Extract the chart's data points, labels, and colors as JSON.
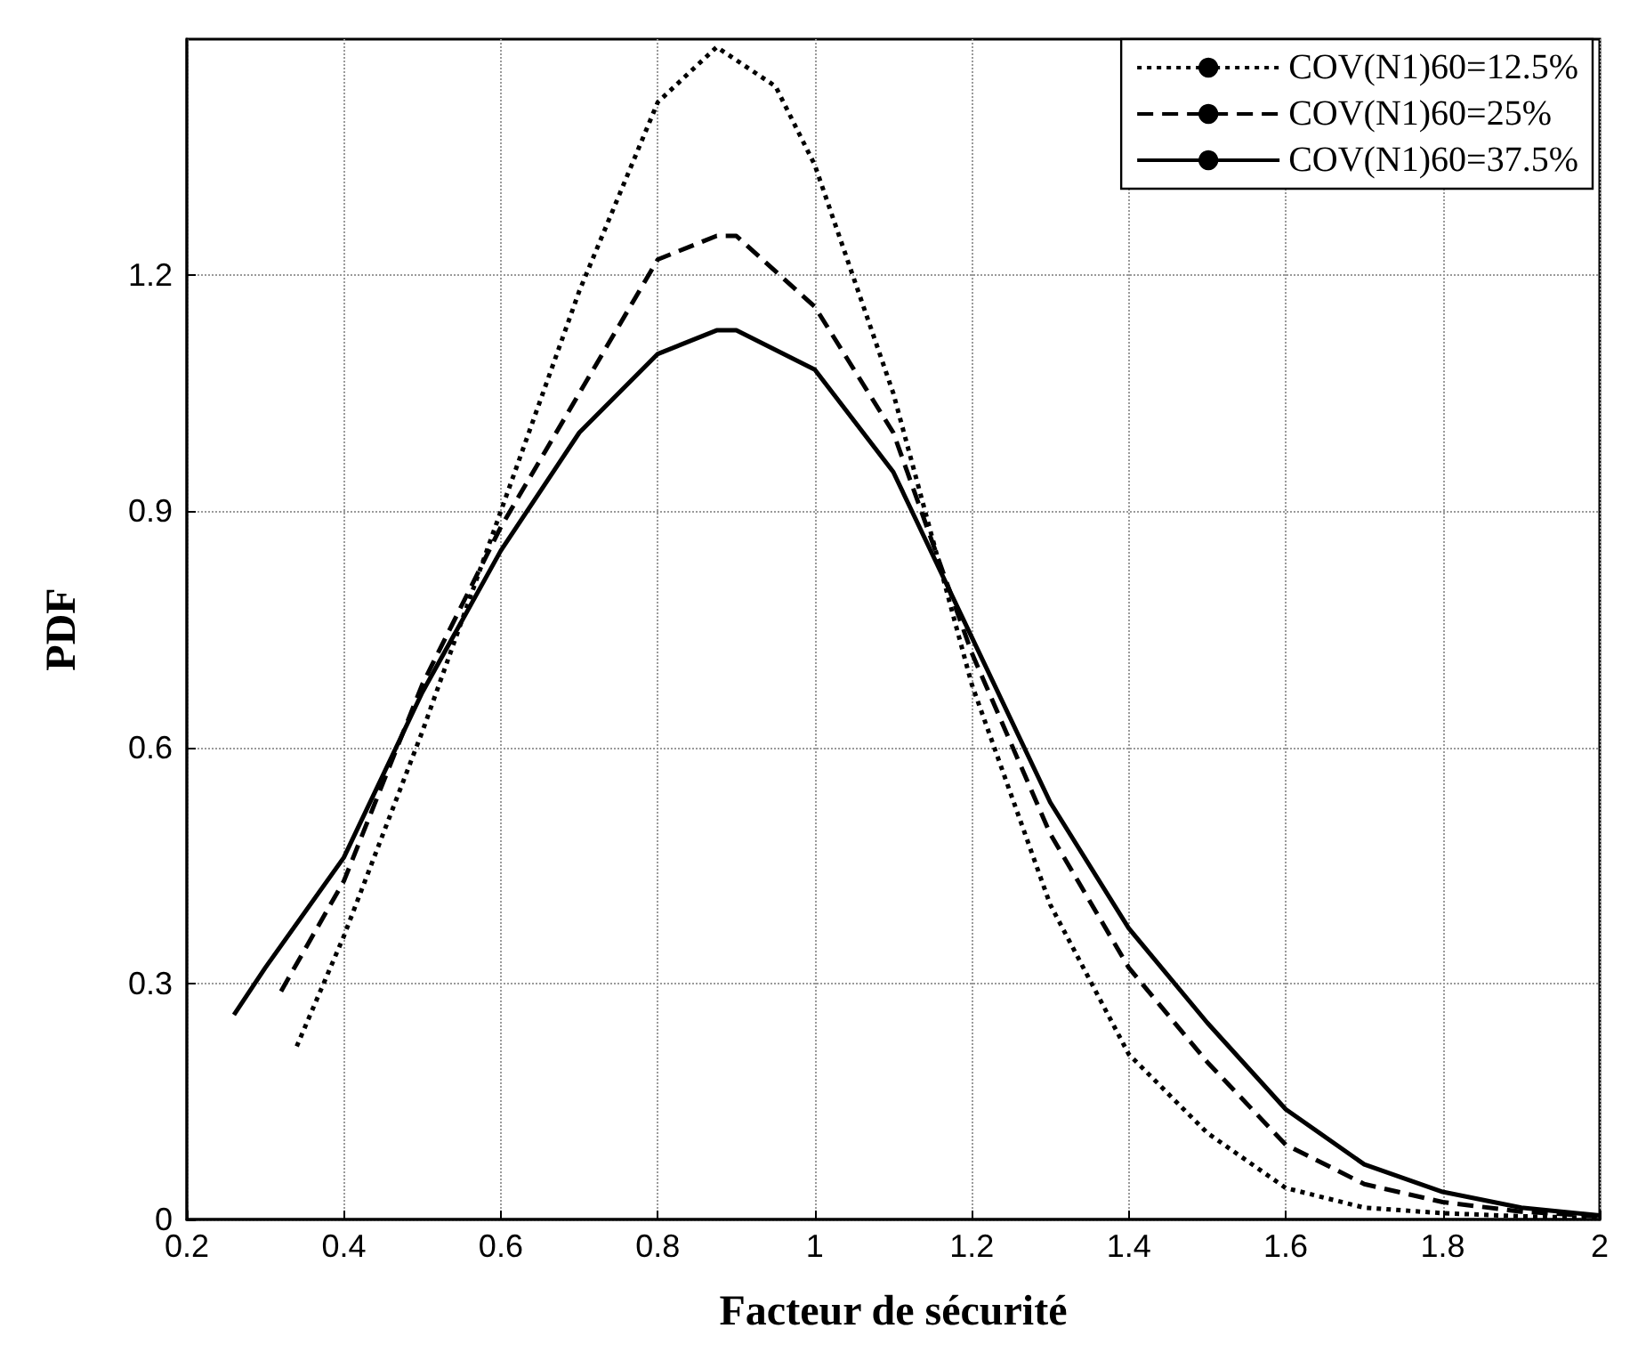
{
  "chart_data": {
    "type": "line",
    "xlabel": "Facteur de sécurité",
    "ylabel": "PDF",
    "xlim": [
      0.2,
      2
    ],
    "ylim": [
      0,
      1.5
    ],
    "xticks": [
      0.2,
      0.4,
      0.6,
      0.8,
      1,
      1.2,
      1.4,
      1.6,
      1.8,
      2
    ],
    "yticks": [
      0,
      0.3,
      0.6,
      0.9,
      1.2
    ],
    "grid": true,
    "legend": "top right",
    "marker": "none",
    "series": [
      {
        "name": "COV(N1)60=12.5%",
        "color": "#000000",
        "line_style": "dotted",
        "x": [
          0.34,
          0.4,
          0.5,
          0.6,
          0.7,
          0.8,
          0.875,
          0.95,
          1.0,
          1.1,
          1.2,
          1.3,
          1.4,
          1.5,
          1.6,
          1.7,
          1.8,
          1.9,
          2.0
        ],
        "values": [
          0.22,
          0.36,
          0.62,
          0.9,
          1.18,
          1.42,
          1.49,
          1.44,
          1.34,
          1.05,
          0.68,
          0.4,
          0.21,
          0.11,
          0.04,
          0.015,
          0.008,
          0.004,
          0.002
        ]
      },
      {
        "name": "COV(N1)60=25%",
        "color": "#000000",
        "line_style": "dashed",
        "x": [
          0.32,
          0.4,
          0.5,
          0.6,
          0.7,
          0.8,
          0.875,
          0.9,
          1.0,
          1.1,
          1.2,
          1.3,
          1.4,
          1.5,
          1.6,
          1.7,
          1.8,
          1.9,
          2.0
        ],
        "values": [
          0.29,
          0.43,
          0.68,
          0.88,
          1.05,
          1.22,
          1.25,
          1.25,
          1.16,
          1.0,
          0.72,
          0.49,
          0.32,
          0.2,
          0.095,
          0.045,
          0.022,
          0.01,
          0.004
        ]
      },
      {
        "name": "COV(N1)60=37.5%",
        "color": "#000000",
        "line_style": "solid",
        "x": [
          0.26,
          0.3,
          0.4,
          0.5,
          0.6,
          0.7,
          0.8,
          0.875,
          0.9,
          1.0,
          1.1,
          1.2,
          1.3,
          1.4,
          1.5,
          1.6,
          1.7,
          1.8,
          1.9,
          2.0
        ],
        "values": [
          0.26,
          0.32,
          0.46,
          0.67,
          0.85,
          1.0,
          1.1,
          1.13,
          1.13,
          1.08,
          0.95,
          0.74,
          0.53,
          0.37,
          0.25,
          0.14,
          0.07,
          0.035,
          0.015,
          0.005
        ]
      }
    ]
  }
}
